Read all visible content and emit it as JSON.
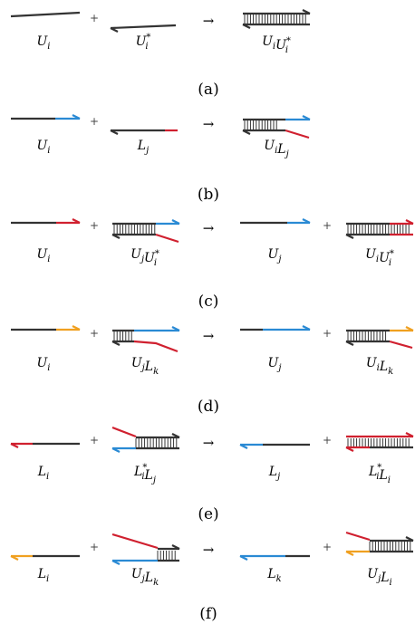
{
  "colors": {
    "strand": "#333333",
    "blue": "#2a8ad4",
    "red": "#d0202f",
    "orange": "#f0a020"
  },
  "symbols": {
    "plus": "+",
    "arrow": "→",
    "star": "*"
  },
  "rows": [
    {
      "caption": "(a)",
      "labels": [
        {
          "base": "U",
          "sub": "i",
          "sup": ""
        },
        {
          "base": "U",
          "sub": "i",
          "sup": "*"
        },
        {
          "parts": [
            {
              "base": "U",
              "sub": "i",
              "sup": ""
            },
            {
              "base": "U",
              "sub": "i",
              "sup": "*"
            }
          ]
        }
      ]
    },
    {
      "caption": "(b)",
      "labels": [
        {
          "base": "U",
          "sub": "i",
          "sup": ""
        },
        {
          "base": "L",
          "sub": "j",
          "sup": ""
        },
        {
          "parts": [
            {
              "base": "U",
              "sub": "i",
              "sup": ""
            },
            {
              "base": "L",
              "sub": "j",
              "sup": ""
            }
          ]
        }
      ]
    },
    {
      "caption": "(c)",
      "labels": [
        {
          "base": "U",
          "sub": "i",
          "sup": ""
        },
        {
          "parts": [
            {
              "base": "U",
              "sub": "j",
              "sup": ""
            },
            {
              "base": "U",
              "sub": "i",
              "sup": "*"
            }
          ]
        },
        {
          "base": "U",
          "sub": "j",
          "sup": ""
        },
        {
          "parts": [
            {
              "base": "U",
              "sub": "i",
              "sup": ""
            },
            {
              "base": "U",
              "sub": "i",
              "sup": "*"
            }
          ]
        }
      ]
    },
    {
      "caption": "(d)",
      "labels": [
        {
          "base": "U",
          "sub": "i",
          "sup": ""
        },
        {
          "parts": [
            {
              "base": "U",
              "sub": "j",
              "sup": ""
            },
            {
              "base": "L",
              "sub": "k",
              "sup": ""
            }
          ]
        },
        {
          "base": "U",
          "sub": "j",
          "sup": ""
        },
        {
          "parts": [
            {
              "base": "U",
              "sub": "i",
              "sup": ""
            },
            {
              "base": "L",
              "sub": "k",
              "sup": ""
            }
          ]
        }
      ]
    },
    {
      "caption": "(e)",
      "labels": [
        {
          "base": "L",
          "sub": "i",
          "sup": ""
        },
        {
          "parts": [
            {
              "base": "L",
              "sub": "i",
              "sup": "*"
            },
            {
              "base": "L",
              "sub": "j",
              "sup": ""
            }
          ]
        },
        {
          "base": "L",
          "sub": "j",
          "sup": ""
        },
        {
          "parts": [
            {
              "base": "L",
              "sub": "i",
              "sup": "*"
            },
            {
              "base": "L",
              "sub": "i",
              "sup": ""
            }
          ]
        }
      ]
    },
    {
      "caption": "(f)",
      "labels": [
        {
          "base": "L",
          "sub": "i",
          "sup": ""
        },
        {
          "parts": [
            {
              "base": "U",
              "sub": "j",
              "sup": ""
            },
            {
              "base": "L",
              "sub": "k",
              "sup": ""
            }
          ]
        },
        {
          "base": "L",
          "sub": "k",
          "sup": ""
        },
        {
          "parts": [
            {
              "base": "U",
              "sub": "j",
              "sup": ""
            },
            {
              "base": "L",
              "sub": "i",
              "sup": ""
            }
          ]
        }
      ]
    }
  ]
}
